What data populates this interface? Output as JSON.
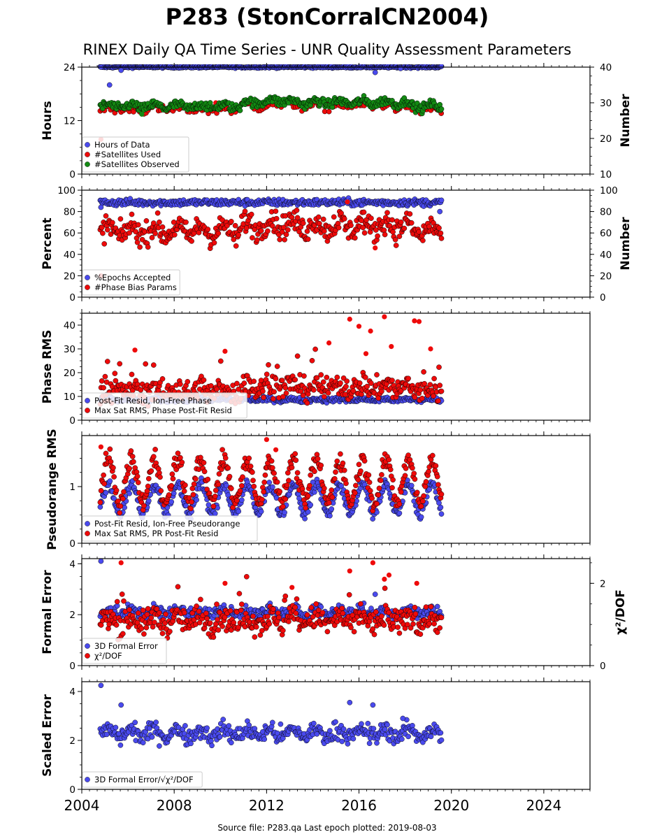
{
  "title": "P283 (StonCorralCN2004)",
  "subtitle": "RINEX Daily QA Time Series - UNR Quality Assessment Parameters",
  "footer": "Source file: P283.qa Last epoch plotted: 2019-08-03",
  "colors": {
    "blue": "#4a4aee",
    "red": "#ee0a0a",
    "green": "#138a13",
    "edge": "#000000"
  },
  "chart_data": [
    {
      "type": "scatter",
      "panel": 1,
      "ylabel": "Hours",
      "ylabel_right": "Number",
      "ylim": [
        0,
        24
      ],
      "yticks": [
        "0",
        "12",
        "24"
      ],
      "ylim_right": [
        10,
        40
      ],
      "yticks_right": [
        "10",
        "20",
        "30",
        "40"
      ],
      "xlim": [
        2004,
        2026
      ],
      "legend": "bottom-left",
      "series": [
        {
          "name": "Hours of Data",
          "color": "blue",
          "axis": "left",
          "base": 24.0,
          "noise": 0.1,
          "cycle": 0,
          "jump": 0,
          "points": [
            [
              2004.83,
              24.0
            ],
            [
              2005.2,
              20.0
            ],
            [
              2005.7,
              23.3
            ],
            [
              2016.7,
              22.8
            ],
            [
              2017.8,
              23.7
            ]
          ]
        },
        {
          "name": "#Satellites Used",
          "color": "red",
          "axis": "left",
          "base": 14.5,
          "noise": 0.5,
          "cycle": 0.3,
          "jump": 1.3,
          "sparse": true,
          "points": [
            [
              2004.83,
              7.8
            ],
            [
              2009.8,
              16.0
            ]
          ]
        },
        {
          "name": "#Satellites Observed",
          "color": "green",
          "axis": "right",
          "base": 29.0,
          "noise": 0.6,
          "cycle": 0.6,
          "jump": 1.8,
          "points": [
            [
              2006.6,
              26.8
            ]
          ]
        }
      ]
    },
    {
      "type": "scatter",
      "panel": 2,
      "ylabel": "Percent",
      "ylabel_right": "Number",
      "ylim": [
        0,
        100
      ],
      "yticks": [
        "0",
        "20",
        "40",
        "60",
        "80",
        "100"
      ],
      "ylim_right": [
        0,
        100
      ],
      "yticks_right": [
        "0",
        "20",
        "40",
        "60",
        "80",
        "100"
      ],
      "xlim": [
        2004,
        2026
      ],
      "legend": "bottom-left",
      "series": [
        {
          "name": "%Epochs Accepted",
          "color": "blue",
          "axis": "left",
          "base": 88.5,
          "noise": 1.6,
          "cycle": 0,
          "jump": 0,
          "points": [
            [
              2004.83,
              84.0
            ],
            [
              2019.5,
              80.0
            ]
          ]
        },
        {
          "name": "#Phase Bias Params",
          "color": "red",
          "axis": "right",
          "base": 62.0,
          "noise": 5.5,
          "cycle": 5.0,
          "jump": 8.0,
          "points": [
            [
              2004.83,
              20.0
            ],
            [
              2016.7,
              46.0
            ],
            [
              2015.5,
              89.0
            ]
          ]
        }
      ]
    },
    {
      "type": "scatter",
      "panel": 3,
      "ylabel": "Phase RMS",
      "ylim": [
        0,
        45
      ],
      "yticks": [
        "0",
        "10",
        "20",
        "30",
        "40"
      ],
      "xlim": [
        2004,
        2026
      ],
      "legend": "bottom-left",
      "series": [
        {
          "name": "Post-Fit Resid, Ion-Free Phase",
          "color": "blue",
          "axis": "left",
          "base": 8.6,
          "noise": 0.5,
          "cycle": 0.3,
          "jump": 0,
          "points": []
        },
        {
          "name": "Max Sat RMS, Phase Post-Fit Resid",
          "color": "red",
          "axis": "left",
          "base": 12.5,
          "noise": 2.5,
          "cycle": 1.5,
          "jump": 2.5,
          "spikes": true,
          "points": [
            [
              2015.6,
              42.5
            ],
            [
              2016.0,
              39.5
            ],
            [
              2016.5,
              37.5
            ],
            [
              2017.1,
              43.5
            ],
            [
              2017.4,
              31.0
            ],
            [
              2018.4,
              41.8
            ],
            [
              2018.6,
              41.5
            ],
            [
              2016.3,
              28.0
            ],
            [
              2014.7,
              32.5
            ],
            [
              2010.2,
              29.0
            ],
            [
              2006.3,
              29.5
            ],
            [
              2019.1,
              30.0
            ]
          ]
        }
      ]
    },
    {
      "type": "scatter",
      "panel": 4,
      "ylabel": "Pseudorange RMS",
      "ylim": [
        0,
        1.9
      ],
      "yticks": [
        "0",
        "1"
      ],
      "xlim": [
        2004,
        2026
      ],
      "legend": "bottom-left",
      "series": [
        {
          "name": "Post-Fit Resid, Ion-Free Pseudorange",
          "color": "blue",
          "axis": "left",
          "base": 0.78,
          "noise": 0.05,
          "cycle": 0.26,
          "jump": 0,
          "points": []
        },
        {
          "name": "Max Sat RMS, PR Post-Fit Resid",
          "color": "red",
          "axis": "left",
          "base": 1.1,
          "noise": 0.08,
          "cycle": 0.38,
          "jump": 0,
          "points": [
            [
              2004.83,
              1.7
            ],
            [
              2012.0,
              1.83
            ],
            [
              2012.4,
              1.65
            ]
          ]
        }
      ]
    },
    {
      "type": "scatter",
      "panel": 5,
      "ylabel": "Formal Error",
      "ylabel_right": "χ²/DOF",
      "ylim": [
        0,
        4.2
      ],
      "yticks": [
        "0",
        "2",
        "4"
      ],
      "ylim_right": [
        0,
        2.6
      ],
      "yticks_right": [
        "0",
        "2"
      ],
      "xlim": [
        2004,
        2026
      ],
      "legend": "bottom-left",
      "series": [
        {
          "name": "3D Formal Error",
          "color": "blue",
          "axis": "left",
          "base": 2.1,
          "noise": 0.12,
          "cycle": 0.1,
          "jump": 0,
          "points": [
            [
              2004.83,
              4.1
            ],
            [
              2016.7,
              2.8
            ]
          ]
        },
        {
          "name": "χ²/DOF",
          "color": "red",
          "axis": "right",
          "base": 1.1,
          "noise": 0.15,
          "cycle": 0.1,
          "jump": 0,
          "spikes": true,
          "points": [
            [
              2005.7,
              2.5
            ],
            [
              2015.6,
              2.3
            ],
            [
              2016.6,
              2.5
            ],
            [
              2017.1,
              2.1
            ],
            [
              2017.3,
              2.2
            ],
            [
              2010.2,
              2.0
            ],
            [
              2013.1,
              1.9
            ],
            [
              2018.5,
              2.0
            ]
          ]
        }
      ]
    },
    {
      "type": "scatter",
      "panel": 6,
      "ylabel": "Scaled Error",
      "ylim": [
        0,
        4.4
      ],
      "yticks": [
        "0",
        "2",
        "4"
      ],
      "xlim": [
        2004,
        2026
      ],
      "xticks": [
        "2004",
        "2008",
        "2012",
        "2016",
        "2020",
        "2024"
      ],
      "legend": "bottom-left",
      "series": [
        {
          "name": "3D Formal Error/√χ²/DOF",
          "color": "blue",
          "axis": "left",
          "base": 2.3,
          "noise": 0.18,
          "cycle": 0.15,
          "jump": 0,
          "points": [
            [
              2004.83,
              4.25
            ],
            [
              2005.7,
              3.45
            ],
            [
              2015.6,
              3.55
            ],
            [
              2016.6,
              3.45
            ],
            [
              2017.9,
              2.9
            ]
          ]
        }
      ]
    }
  ]
}
